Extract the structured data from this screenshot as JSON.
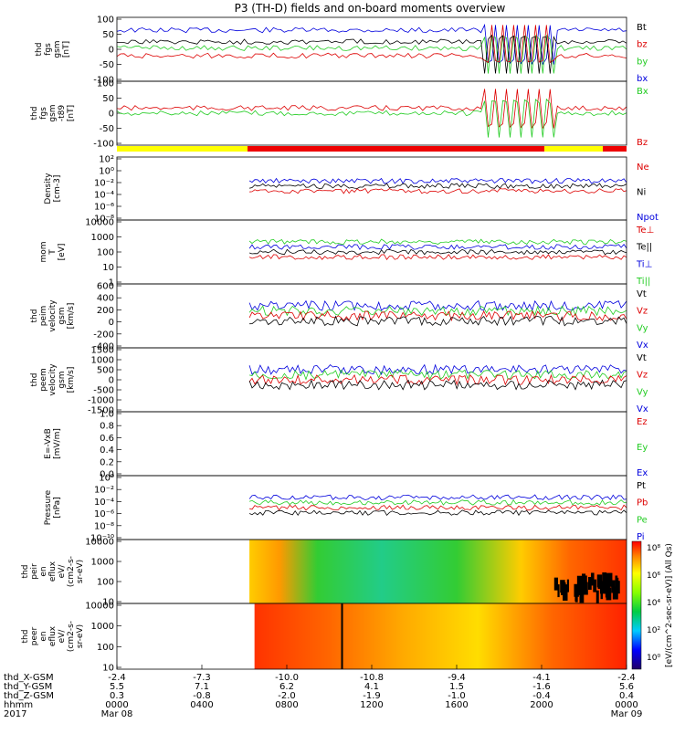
{
  "title": "P3 (TH-D) fields and on-board moments overview",
  "colors": {
    "black": "#000000",
    "red": "#dd0000",
    "green": "#22cc22",
    "blue": "#0000dd",
    "yellow": "#ffff00",
    "bar_red": "#ee0000"
  },
  "chart_data": {
    "type": "line",
    "x_ticks": [
      "0000",
      "0400",
      "0800",
      "1200",
      "1600",
      "2000",
      "0000"
    ],
    "x_dates": [
      "Mar 08",
      "",
      "",
      "",
      "",
      "",
      "Mar 09"
    ],
    "year": "2017",
    "ephemeris": {
      "labels": [
        "thd_X-GSM",
        "thd_Y-GSM",
        "thd_Z-GSM",
        "hhmm",
        "2017"
      ],
      "rows": [
        [
          "-2.4",
          "-7.3",
          "-10.0",
          "-10.8",
          "-9.4",
          "-4.1",
          "-2.4"
        ],
        [
          "5.5",
          "7.1",
          "6.2",
          "4.1",
          "1.5",
          "-1.6",
          "5.6"
        ],
        [
          "0.3",
          "-0.8",
          "-2.0",
          "-1.9",
          "-1.0",
          "-0.4",
          "0.4"
        ]
      ]
    },
    "panels": [
      {
        "id": "fgs",
        "ylabel": [
          "thd",
          "fgs",
          "gsm",
          "[nT]"
        ],
        "yticks": [
          "100",
          "50",
          "0",
          "-50",
          "-100"
        ],
        "legend": [
          {
            "t": "Bt",
            "c": "black"
          },
          {
            "t": "bz",
            "c": "red"
          },
          {
            "t": "by",
            "c": "green"
          },
          {
            "t": "bx",
            "c": "blue"
          }
        ]
      },
      {
        "id": "fgs_t89",
        "ylabel": [
          "thd",
          "fgs",
          "gsm",
          "-t89",
          "[nT]"
        ],
        "yticks": [
          "100",
          "50",
          "0",
          "-50",
          "-100"
        ],
        "legend": [
          {
            "t": "Bx",
            "c": "green"
          },
          {
            "t": "Bz",
            "c": "red"
          }
        ]
      },
      {
        "id": "density",
        "ylabel": [
          "Density",
          "[cm-3]"
        ],
        "yticks": [
          "10²",
          "10⁰",
          "10⁻²",
          "10⁻⁴",
          "10⁻⁶",
          "10⁻⁸"
        ],
        "legend": [
          {
            "t": "Ne",
            "c": "red"
          },
          {
            "t": "Ni",
            "c": "black"
          },
          {
            "t": "Npot",
            "c": "blue"
          }
        ]
      },
      {
        "id": "temp",
        "ylabel": [
          "mom",
          "T",
          "[eV]"
        ],
        "yticks": [
          "10000",
          "1000",
          "100",
          "10",
          "1"
        ],
        "legend": [
          {
            "t": "Te⊥",
            "c": "red"
          },
          {
            "t": "Te||",
            "c": "black"
          },
          {
            "t": "Ti⊥",
            "c": "blue"
          },
          {
            "t": "Ti||",
            "c": "green"
          }
        ]
      },
      {
        "id": "peim_v",
        "ylabel": [
          "thd",
          "peim",
          "velocity",
          "gsm",
          "[km/s]"
        ],
        "yticks": [
          "600",
          "400",
          "200",
          "0",
          "-200",
          "-400"
        ],
        "legend": [
          {
            "t": "Vt",
            "c": "black"
          },
          {
            "t": "Vz",
            "c": "red"
          },
          {
            "t": "Vy",
            "c": "green"
          },
          {
            "t": "Vx",
            "c": "blue"
          }
        ]
      },
      {
        "id": "peem_v",
        "ylabel": [
          "thd",
          "peem",
          "velocity",
          "gsm",
          "[km/s]"
        ],
        "yticks": [
          "1500",
          "1000",
          "500",
          "0",
          "-500",
          "-1000",
          "-1500"
        ],
        "legend": [
          {
            "t": "Vt",
            "c": "black"
          },
          {
            "t": "Vz",
            "c": "red"
          },
          {
            "t": "Vy",
            "c": "green"
          },
          {
            "t": "Vx",
            "c": "blue"
          }
        ]
      },
      {
        "id": "efield",
        "ylabel": [
          "E=-VxB",
          "[mV/m]"
        ],
        "yticks": [
          "1.0",
          "0.8",
          "0.6",
          "0.4",
          "0.2",
          "0.0"
        ],
        "legend": [
          {
            "t": "Ez",
            "c": "red"
          },
          {
            "t": "Ey",
            "c": "green"
          },
          {
            "t": "Ex",
            "c": "blue"
          }
        ]
      },
      {
        "id": "pressure",
        "ylabel": [
          "Pressure",
          "[nPa]"
        ],
        "yticks": [
          "10⁰",
          "10⁻²",
          "10⁻⁴",
          "10⁻⁶",
          "10⁻⁸",
          "10⁻¹⁰"
        ],
        "legend": [
          {
            "t": "Pt",
            "c": "black"
          },
          {
            "t": "Pb",
            "c": "red"
          },
          {
            "t": "Pe",
            "c": "green"
          },
          {
            "t": "Pi",
            "c": "blue"
          }
        ]
      },
      {
        "id": "peir",
        "ylabel": [
          "thd",
          "peir",
          "en",
          "eflux",
          "eV/",
          "(cm2-s-",
          "sr-eV)"
        ],
        "yticks": [
          "10000",
          "1000",
          "100",
          "10"
        ]
      },
      {
        "id": "peer",
        "ylabel": [
          "thd",
          "peer",
          "en",
          "eflux",
          "eV/",
          "(cm2-s-",
          "sr-eV)"
        ],
        "yticks": [
          "10000",
          "1000",
          "100",
          "10"
        ]
      }
    ],
    "colorbar": {
      "label": "[eV/(cm^2-sec-sr-eV)] (All Qs)",
      "ticks": [
        "10⁸",
        "10⁶",
        "10⁴",
        "10²",
        "10⁰"
      ]
    }
  }
}
